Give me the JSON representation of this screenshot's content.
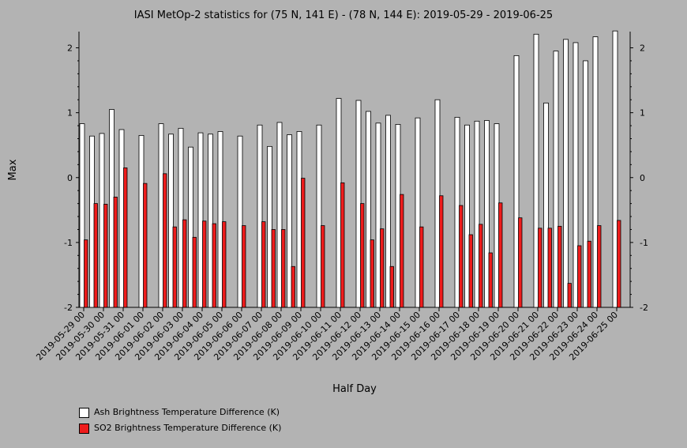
{
  "chart_data": {
    "type": "bar",
    "title": "IASI MetOp-2 statistics for (75 N, 141 E) - (78 N, 144 E): 2019-05-29 - 2019-06-25",
    "xlabel": "Half Day",
    "ylabel": "Max",
    "ylim": [
      -2,
      2.25
    ],
    "yticks": [
      -2,
      -1,
      0,
      1,
      2
    ],
    "ytick_labels": [
      "-2",
      "-1",
      "0",
      "1",
      "2"
    ],
    "xtick_labels": [
      "2019-05-29 00",
      "2019-05-30 00",
      "2019-05-31 00",
      "2019-06-01 00",
      "2019-06-02 00",
      "2019-06-03 00",
      "2019-06-04 00",
      "2019-06-05 00",
      "2019-06-06 00",
      "2019-06-07 00",
      "2019-06-08 00",
      "2019-06-09 00",
      "2019-06-10 00",
      "2019-06-11 00",
      "2019-06-12 00",
      "2019-06-13 00",
      "2019-06-14 00",
      "2019-06-15 00",
      "2019-06-16 00",
      "2019-06-17 00",
      "2019-06-18 00",
      "2019-06-19 00",
      "2019-06-20 00",
      "2019-06-21 00",
      "2019-06-22 00",
      "2019-06-23 00",
      "2019-06-24 00",
      "2019-06-25 00"
    ],
    "grid": false,
    "legend_position": "bottom-left",
    "series": [
      {
        "name": "Ash Brightness Temperature Difference (K)",
        "color": "#ffffff",
        "values": [
          0.83,
          0.64,
          0.68,
          1.05,
          0.74,
          null,
          0.65,
          null,
          0.83,
          0.67,
          0.76,
          0.47,
          0.69,
          0.67,
          0.71,
          null,
          0.64,
          null,
          0.81,
          0.48,
          0.85,
          0.66,
          0.71,
          null,
          0.81,
          null,
          1.22,
          null,
          1.19,
          1.02,
          0.84,
          0.96,
          0.82,
          null,
          0.92,
          null,
          1.2,
          null,
          0.93,
          0.81,
          0.87,
          0.88,
          0.83,
          null,
          1.88,
          null,
          2.21,
          1.15,
          1.95,
          2.13,
          2.08,
          1.8,
          2.17,
          null,
          2.26
        ]
      },
      {
        "name": "SO2 Brightness Temperature Difference (K)",
        "color": "#ee1c1c",
        "values": [
          -0.96,
          -0.4,
          -0.41,
          -0.3,
          0.15,
          null,
          -0.09,
          null,
          0.06,
          -0.76,
          -0.65,
          -0.92,
          -0.67,
          -0.71,
          -0.68,
          null,
          -0.74,
          null,
          -0.68,
          -0.8,
          -0.8,
          -1.37,
          -0.01,
          null,
          -0.74,
          null,
          -0.08,
          null,
          -0.4,
          -0.96,
          -0.79,
          -1.37,
          -0.26,
          null,
          -0.76,
          null,
          -0.28,
          null,
          -0.43,
          -0.88,
          -0.72,
          -1.16,
          -0.39,
          null,
          -0.62,
          null,
          -0.78,
          -0.78,
          -0.75,
          -1.63,
          -1.05,
          -0.98,
          -0.74,
          null,
          -0.66
        ]
      }
    ]
  }
}
